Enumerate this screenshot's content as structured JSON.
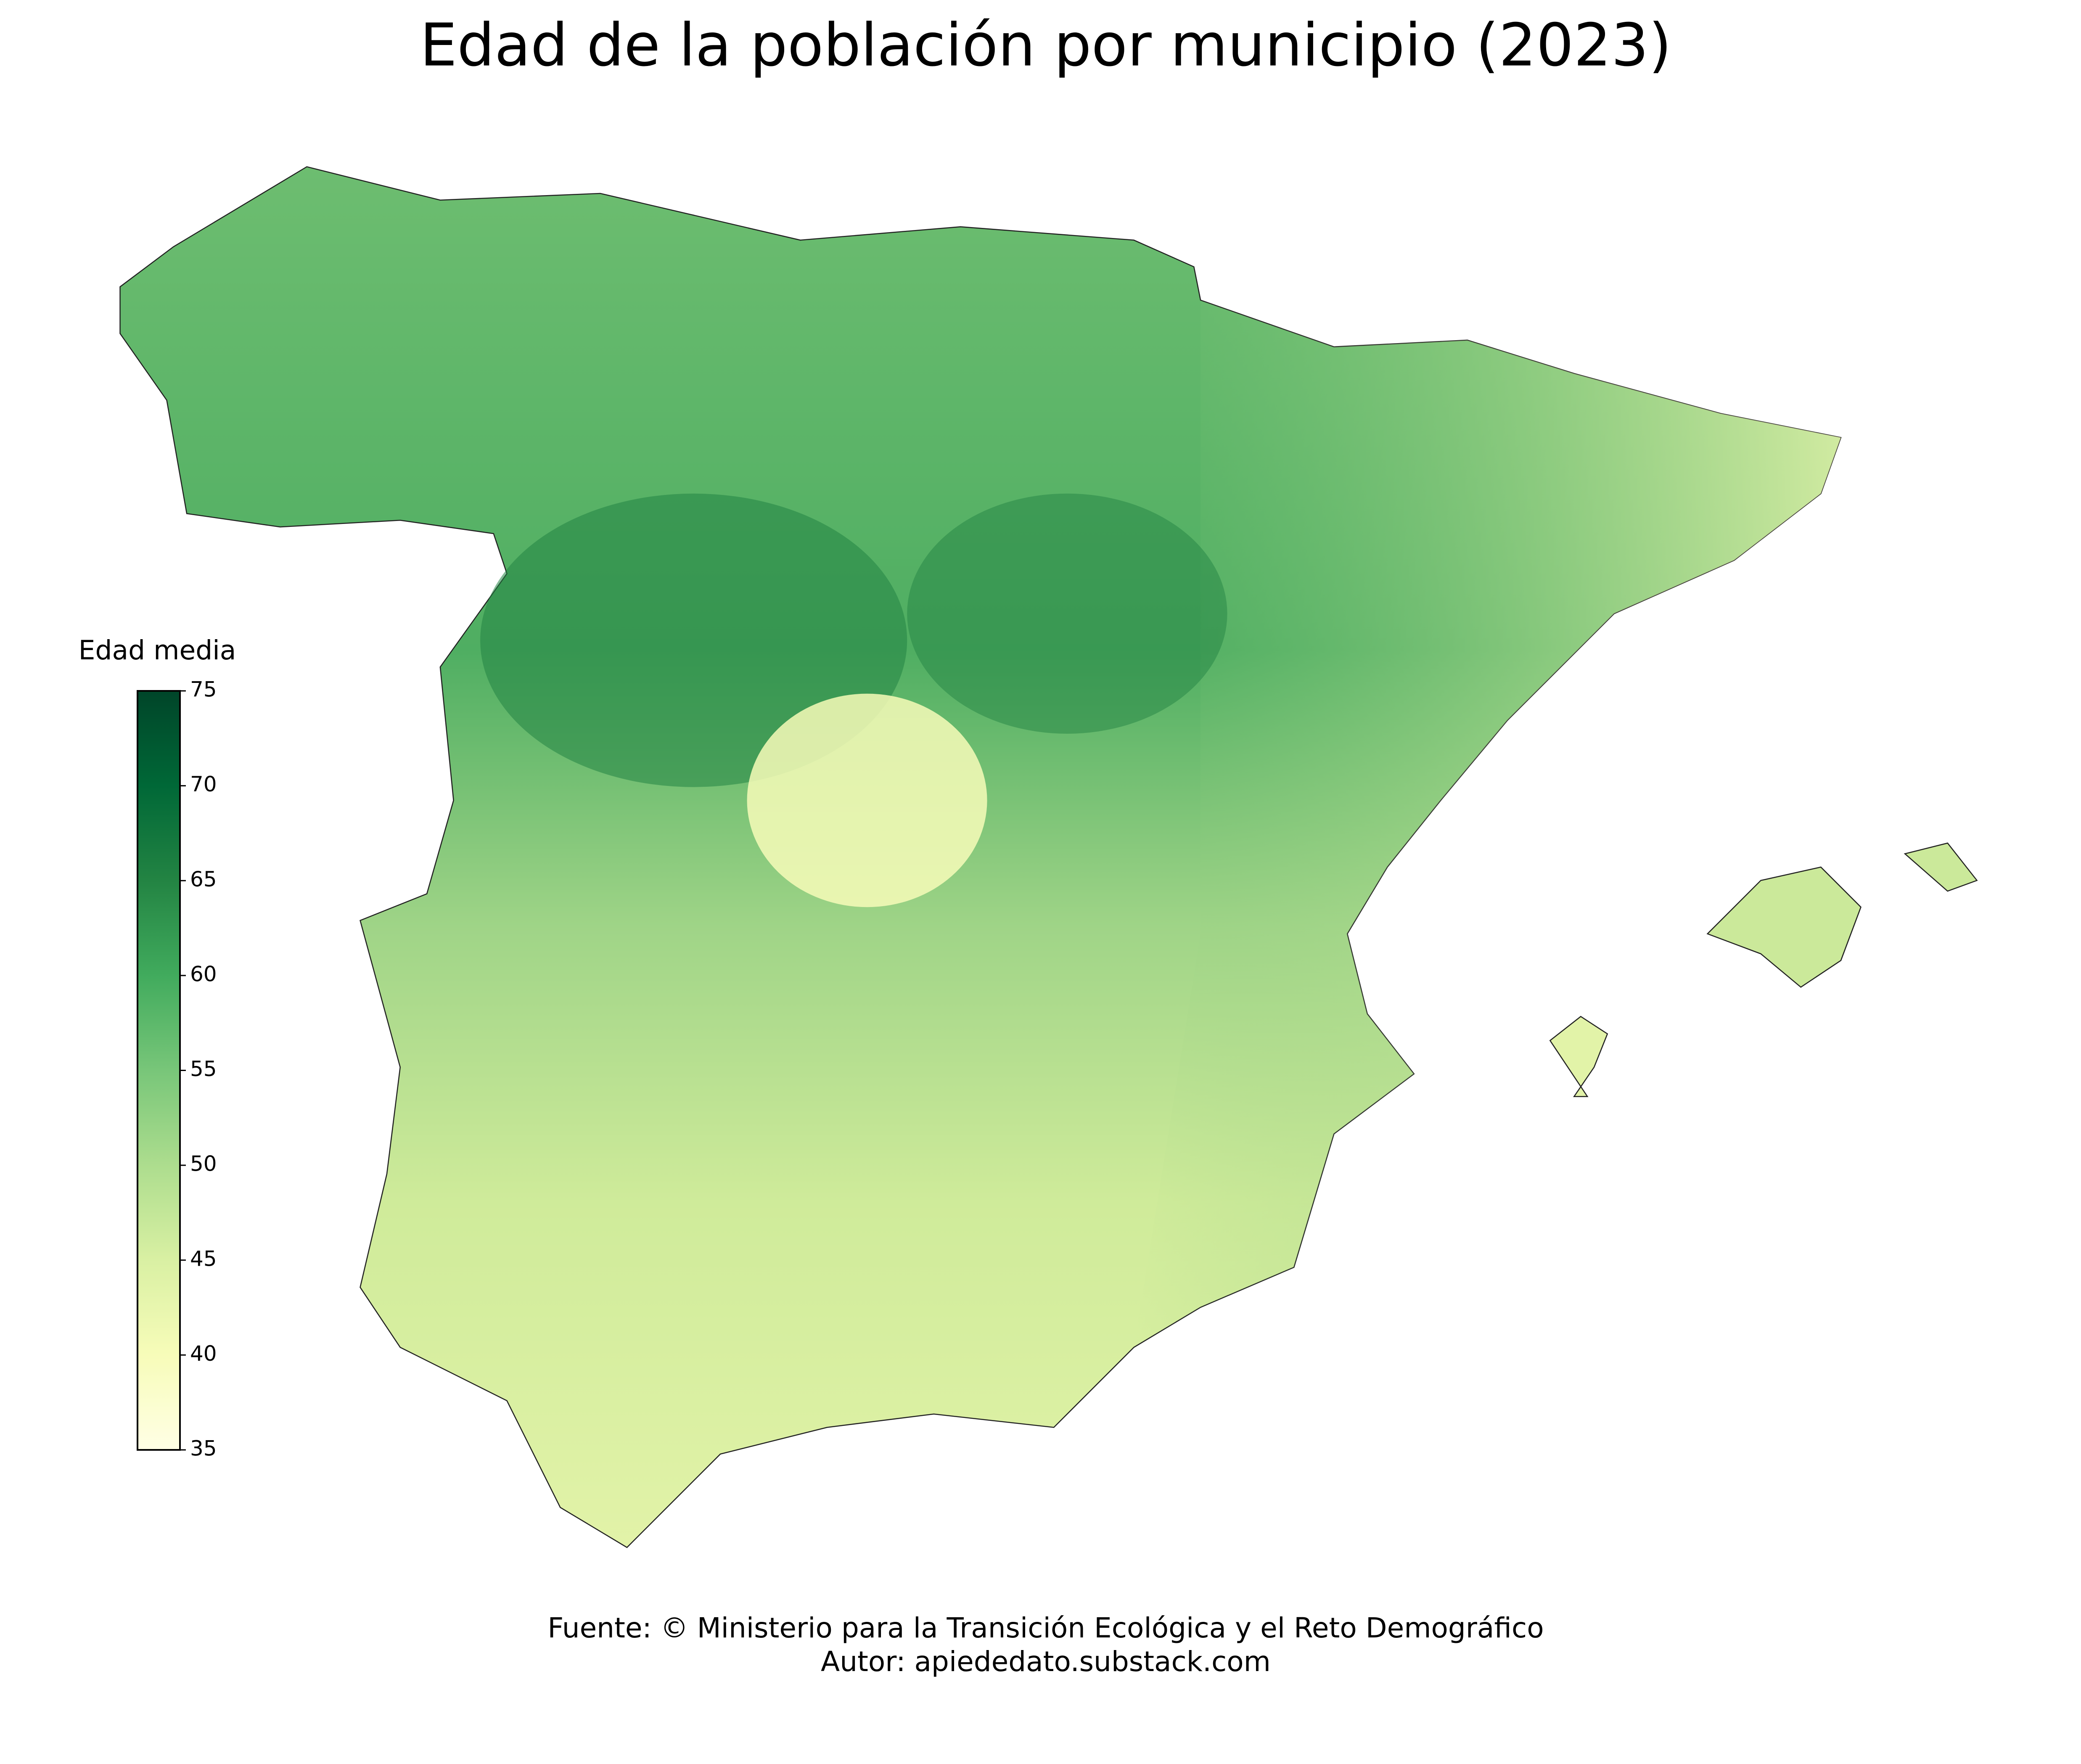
{
  "chart_data": {
    "type": "choropleth",
    "title": "Edad de la población por municipio (2023)",
    "colorbar": {
      "label": "Edad media",
      "lim": [
        35,
        75
      ],
      "ticks": [
        35,
        40,
        45,
        50,
        55,
        60,
        65,
        70,
        75
      ],
      "colors": [
        "#ffffe5",
        "#f7fcb9",
        "#d9f0a3",
        "#addd8e",
        "#78c679",
        "#41ab5d",
        "#238443",
        "#006837",
        "#004529"
      ]
    },
    "source": "Fuente: © Ministerio para la Transición Ecológica y el Reto Demográfico",
    "author": "Autor: apiededato.substack.com"
  }
}
